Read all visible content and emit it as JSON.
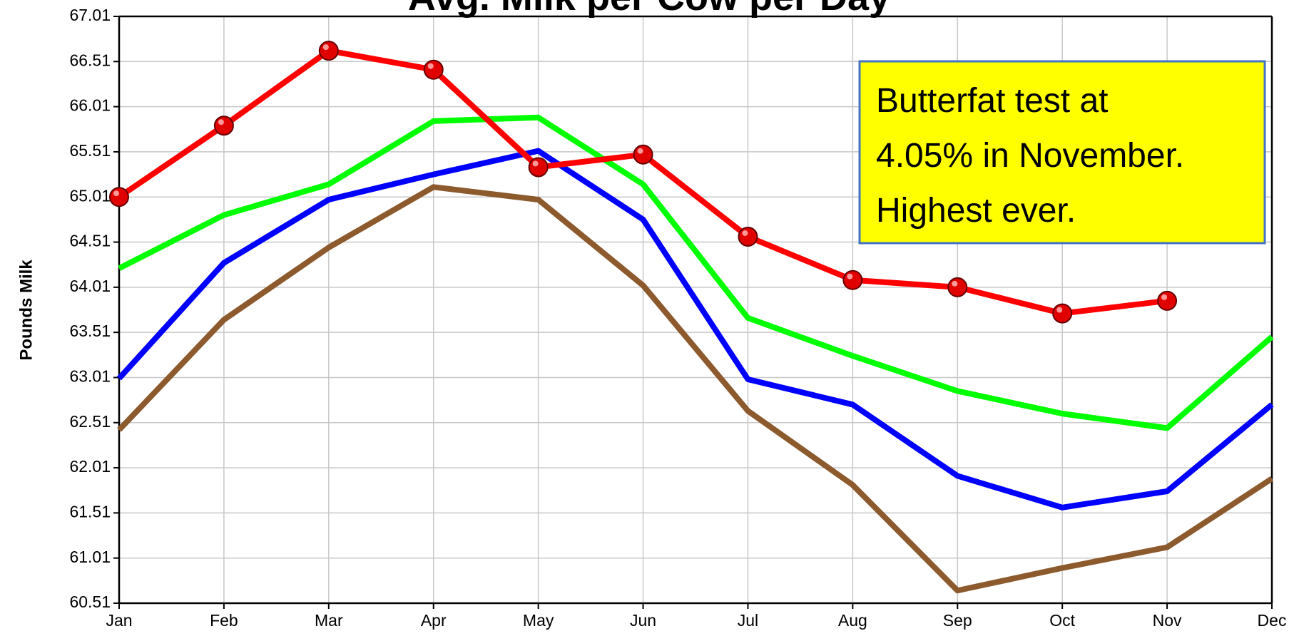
{
  "chart_data": {
    "type": "line",
    "title": "Avg. Milk per Cow per Day",
    "y_label": "Pounds Milk",
    "categories": [
      "Jan",
      "Feb",
      "Mar",
      "Apr",
      "May",
      "Jun",
      "Jul",
      "Aug",
      "Sep",
      "Oct",
      "Nov",
      "Dec"
    ],
    "series": [
      {
        "color": "#8c5a2c",
        "values": [
          62.43,
          63.65,
          64.45,
          65.12,
          64.98,
          64.03,
          62.64,
          61.82,
          60.65,
          60.9,
          61.13,
          61.89
        ]
      },
      {
        "color": "#0000ff",
        "values": [
          63.0,
          64.28,
          64.98,
          65.26,
          65.52,
          64.76,
          62.99,
          62.71,
          61.92,
          61.57,
          61.75,
          62.71
        ]
      },
      {
        "color": "#00ff00",
        "values": [
          64.22,
          64.81,
          65.15,
          65.85,
          65.89,
          65.15,
          63.67,
          63.25,
          62.86,
          62.61,
          62.45,
          63.46
        ]
      },
      {
        "color": "#ff0000",
        "markers": true,
        "values": [
          65.01,
          65.8,
          66.63,
          66.42,
          65.34,
          65.48,
          64.57,
          64.09,
          64.01,
          63.72,
          63.86,
          null
        ]
      }
    ],
    "ylim": [
      60.51,
      67.01
    ],
    "yticks": [
      60.51,
      61.01,
      61.51,
      62.01,
      62.51,
      63.01,
      63.51,
      64.01,
      64.51,
      65.01,
      65.51,
      66.01,
      66.51,
      67.01
    ],
    "grid": true,
    "annotation": {
      "lines": [
        "Butterfat test at",
        "4.05% in November.",
        "Highest ever."
      ],
      "background": "#ffff00",
      "border": "#4472c4"
    }
  }
}
